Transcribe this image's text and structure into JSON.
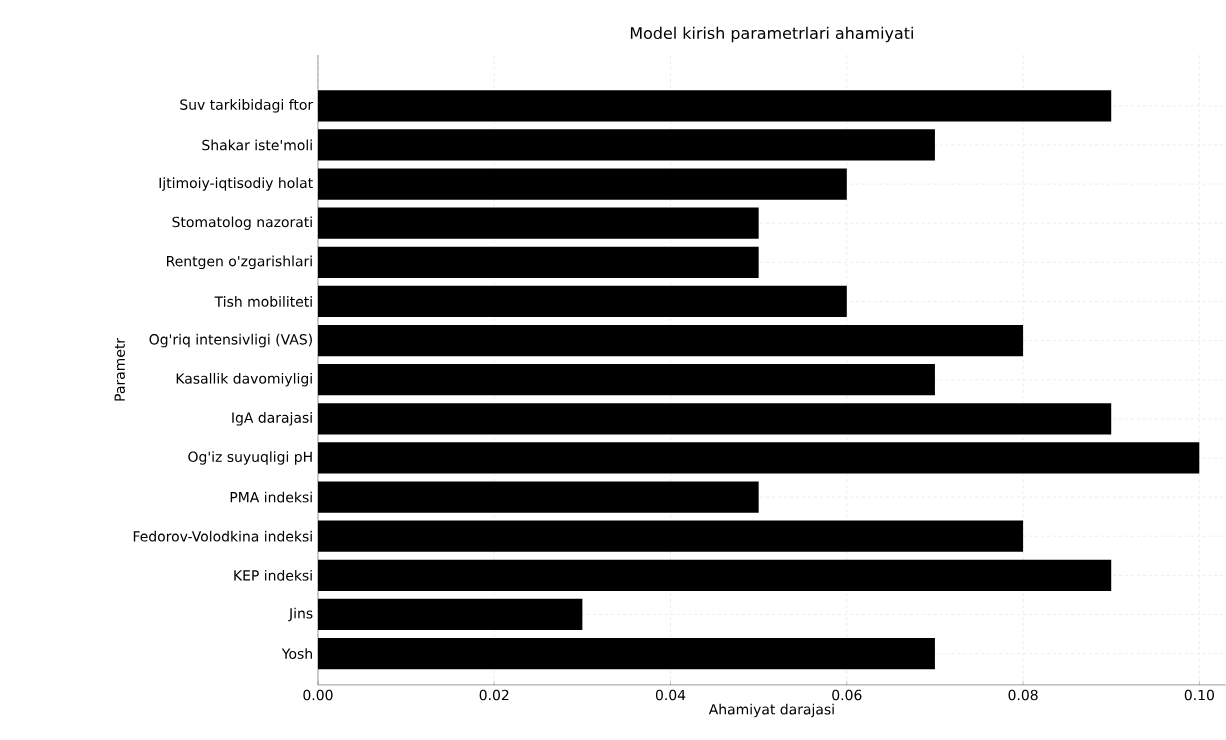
{
  "chart_data": {
    "type": "bar",
    "orientation": "horizontal",
    "title": "Model kirish parametrlari ahamiyati",
    "xlabel": "Ahamiyat darajasi",
    "ylabel": "Parametr",
    "categories": [
      "Suv tarkibidagi ftor",
      "Shakar iste'moli",
      "Ijtimoiy-iqtisodiy holat",
      "Stomatolog nazorati",
      "Rentgen o'zgarishlari",
      "Tish mobiliteti",
      "Og'riq intensivligi (VAS)",
      "Kasallik davomiyligi",
      "IgA darajasi",
      "Og'iz suyuqligi pH",
      "PMA indeksi",
      "Fedorov-Volodkina indeksi",
      "KEP indeksi",
      "Jins",
      "Yosh"
    ],
    "values": [
      0.09,
      0.07,
      0.06,
      0.05,
      0.05,
      0.06,
      0.08,
      0.07,
      0.09,
      0.1,
      0.05,
      0.08,
      0.09,
      0.03,
      0.07
    ],
    "color": "#000000",
    "xlim": [
      0,
      0.103
    ],
    "xticks": [
      {
        "value": 0,
        "label": "0.00"
      },
      {
        "value": 0.02,
        "label": "0.02"
      },
      {
        "value": 0.04,
        "label": "0.04"
      },
      {
        "value": 0.06,
        "label": "0.06"
      },
      {
        "value": 0.08,
        "label": "0.08"
      },
      {
        "value": 0.1,
        "label": "0.10"
      }
    ],
    "grid": true
  }
}
